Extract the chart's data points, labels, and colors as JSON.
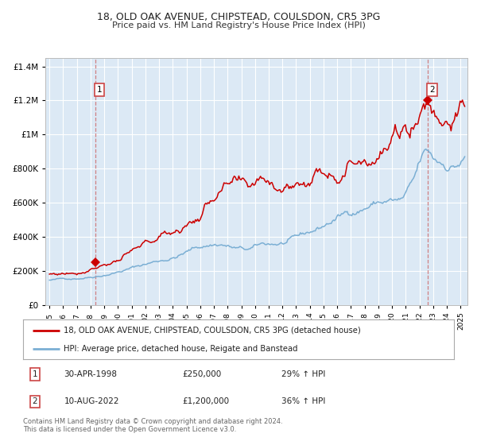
{
  "title1": "18, OLD OAK AVENUE, CHIPSTEAD, COULSDON, CR5 3PG",
  "title2": "Price paid vs. HM Land Registry's House Price Index (HPI)",
  "legend_label1": "18, OLD OAK AVENUE, CHIPSTEAD, COULSDON, CR5 3PG (detached house)",
  "legend_label2": "HPI: Average price, detached house, Reigate and Banstead",
  "annotation1_date": "30-APR-1998",
  "annotation1_price": "£250,000",
  "annotation1_hpi": "29% ↑ HPI",
  "annotation1_year": 1998.33,
  "annotation1_value": 250000,
  "annotation2_date": "10-AUG-2022",
  "annotation2_price": "£1,200,000",
  "annotation2_hpi": "36% ↑ HPI",
  "annotation2_year": 2022.62,
  "annotation2_value": 1200000,
  "footer1": "Contains HM Land Registry data © Crown copyright and database right 2024.",
  "footer2": "This data is licensed under the Open Government Licence v3.0.",
  "bg_color": "#dce9f5",
  "red_color": "#cc0000",
  "blue_color": "#7bafd4",
  "grid_color": "#ffffff",
  "ylim": [
    0,
    1450000
  ],
  "xlim_start": 1994.7,
  "xlim_end": 2025.5,
  "yticks": [
    0,
    200000,
    400000,
    600000,
    800000,
    1000000,
    1200000,
    1400000
  ],
  "xtick_years": [
    1995,
    1996,
    1997,
    1998,
    1999,
    2000,
    2001,
    2002,
    2003,
    2004,
    2005,
    2006,
    2007,
    2008,
    2009,
    2010,
    2011,
    2012,
    2013,
    2014,
    2015,
    2016,
    2017,
    2018,
    2019,
    2020,
    2021,
    2022,
    2023,
    2024,
    2025
  ]
}
